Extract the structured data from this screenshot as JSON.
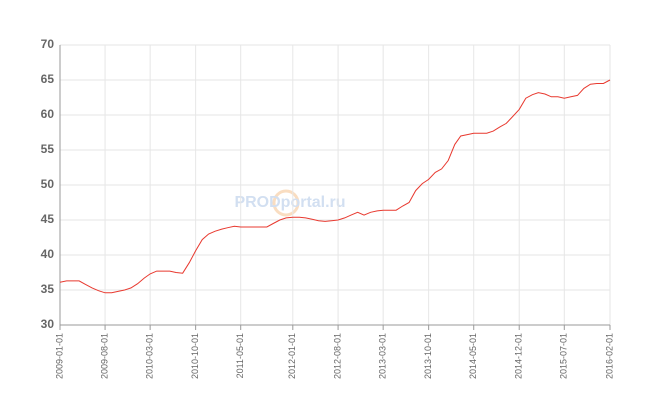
{
  "chart_data": {
    "type": "line",
    "watermark": "PRODportal.ru",
    "x": [
      "2009-01-01",
      "2009-02-01",
      "2009-03-01",
      "2009-04-01",
      "2009-05-01",
      "2009-06-01",
      "2009-07-01",
      "2009-08-01",
      "2009-09-01",
      "2009-10-01",
      "2009-11-01",
      "2009-12-01",
      "2010-01-01",
      "2010-02-01",
      "2010-03-01",
      "2010-04-01",
      "2010-05-01",
      "2010-06-01",
      "2010-07-01",
      "2010-08-01",
      "2010-09-01",
      "2010-10-01",
      "2010-11-01",
      "2010-12-01",
      "2011-01-01",
      "2011-02-01",
      "2011-03-01",
      "2011-04-01",
      "2011-05-01",
      "2011-06-01",
      "2011-07-01",
      "2011-08-01",
      "2011-09-01",
      "2011-10-01",
      "2011-11-01",
      "2011-12-01",
      "2012-01-01",
      "2012-02-01",
      "2012-03-01",
      "2012-04-01",
      "2012-05-01",
      "2012-06-01",
      "2012-07-01",
      "2012-08-01",
      "2012-09-01",
      "2012-10-01",
      "2012-11-01",
      "2012-12-01",
      "2013-01-01",
      "2013-02-01",
      "2013-03-01",
      "2013-04-01",
      "2013-05-01",
      "2013-06-01",
      "2013-07-01",
      "2013-08-01",
      "2013-09-01",
      "2013-10-01",
      "2013-11-01",
      "2013-12-01",
      "2014-01-01",
      "2014-02-01",
      "2014-03-01",
      "2014-04-01",
      "2014-05-01",
      "2014-06-01",
      "2014-07-01",
      "2014-08-01",
      "2014-09-01",
      "2014-10-01",
      "2014-11-01",
      "2014-12-01",
      "2015-01-01",
      "2015-02-01",
      "2015-03-01",
      "2015-04-01",
      "2015-05-01",
      "2015-06-01",
      "2015-07-01",
      "2015-08-01",
      "2015-09-01",
      "2015-10-01",
      "2015-11-01",
      "2015-12-01",
      "2016-01-01",
      "2016-02-01"
    ],
    "series": [
      {
        "color": "#e8392f",
        "values": [
          36.1,
          36.3,
          36.3,
          36.3,
          35.8,
          35.3,
          34.9,
          34.6,
          34.6,
          34.8,
          35.0,
          35.3,
          35.9,
          36.7,
          37.3,
          37.7,
          37.7,
          37.7,
          37.5,
          37.4,
          38.9,
          40.6,
          42.2,
          43.0,
          43.4,
          43.7,
          43.9,
          44.1,
          44.0,
          44.0,
          44.0,
          44.0,
          44.0,
          44.5,
          45.0,
          45.3,
          45.4,
          45.4,
          45.3,
          45.1,
          44.9,
          44.8,
          44.9,
          45.0,
          45.3,
          45.7,
          46.1,
          45.7,
          46.1,
          46.3,
          46.4,
          46.4,
          46.4,
          47.0,
          47.5,
          49.2,
          50.2,
          50.8,
          51.8,
          52.3,
          53.5,
          55.8,
          57.0,
          57.2,
          57.4,
          57.4,
          57.4,
          57.7,
          58.3,
          58.8,
          59.8,
          60.8,
          62.4,
          62.9,
          63.2,
          63.0,
          62.6,
          62.6,
          62.4,
          62.6,
          62.8,
          63.8,
          64.4,
          64.5,
          64.5,
          65.0
        ]
      }
    ],
    "xlim": [
      "2009-01-01",
      "2016-02-01"
    ],
    "xticks": [
      "2009-01-01",
      "2009-08-01",
      "2010-03-01",
      "2010-10-01",
      "2011-05-01",
      "2012-01-01",
      "2012-08-01",
      "2013-03-01",
      "2013-10-01",
      "2014-05-01",
      "2014-12-01",
      "2015-07-01",
      "2016-02-01"
    ],
    "ylim": [
      30,
      70
    ],
    "yticks": [
      30,
      35,
      40,
      45,
      50,
      55,
      60,
      65,
      70
    ],
    "grid": true
  }
}
